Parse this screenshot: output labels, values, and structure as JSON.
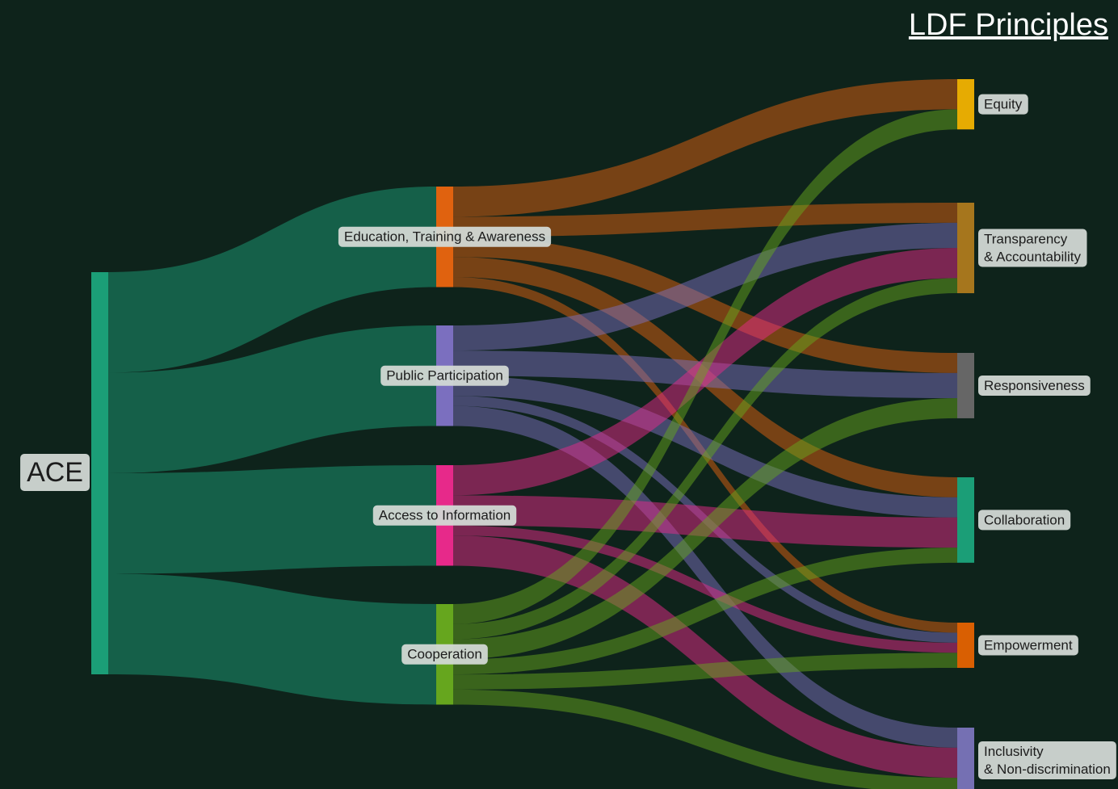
{
  "chart_data": {
    "type": "sankey",
    "title": "LDF Principles",
    "link_opacity": 0.5,
    "nodes": [
      {
        "label": [
          "ACE"
        ],
        "color": "#1b9e77"
      },
      {
        "label": [
          "Education, Training & Awareness"
        ],
        "color": "#e0620f"
      },
      {
        "label": [
          "Public Participation"
        ],
        "color": "#7b6fbf"
      },
      {
        "label": [
          "Access to Information"
        ],
        "color": "#e7298a"
      },
      {
        "label": [
          "Cooperation"
        ],
        "color": "#66a61e"
      },
      {
        "label": [
          "Equity"
        ],
        "color": "#e6ab02"
      },
      {
        "label": [
          "Transparency",
          "& Accountability"
        ],
        "color": "#a6761d"
      },
      {
        "label": [
          "Responsiveness"
        ],
        "color": "#666666"
      },
      {
        "label": [
          "Collaboration"
        ],
        "color": "#1b9e77"
      },
      {
        "label": [
          "Empowerment"
        ],
        "color": "#d95f02"
      },
      {
        "label": [
          "Inclusivity",
          "& Non-discrimination"
        ],
        "color": "#7570b3"
      }
    ],
    "links": [
      {
        "source": 0,
        "target": 1,
        "value": 10
      },
      {
        "source": 0,
        "target": 2,
        "value": 10
      },
      {
        "source": 0,
        "target": 3,
        "value": 10
      },
      {
        "source": 0,
        "target": 4,
        "value": 10
      },
      {
        "source": 1,
        "target": 5,
        "value": 3
      },
      {
        "source": 1,
        "target": 6,
        "value": 2
      },
      {
        "source": 1,
        "target": 7,
        "value": 2
      },
      {
        "source": 1,
        "target": 8,
        "value": 2
      },
      {
        "source": 1,
        "target": 9,
        "value": 1
      },
      {
        "source": 2,
        "target": 6,
        "value": 2.5
      },
      {
        "source": 2,
        "target": 7,
        "value": 2.5
      },
      {
        "source": 2,
        "target": 8,
        "value": 2
      },
      {
        "source": 2,
        "target": 9,
        "value": 1
      },
      {
        "source": 2,
        "target": 10,
        "value": 2
      },
      {
        "source": 3,
        "target": 6,
        "value": 3
      },
      {
        "source": 3,
        "target": 8,
        "value": 3
      },
      {
        "source": 3,
        "target": 9,
        "value": 1
      },
      {
        "source": 3,
        "target": 10,
        "value": 3
      },
      {
        "source": 4,
        "target": 5,
        "value": 2
      },
      {
        "source": 4,
        "target": 6,
        "value": 1.5
      },
      {
        "source": 4,
        "target": 7,
        "value": 2
      },
      {
        "source": 4,
        "target": 8,
        "value": 1.5
      },
      {
        "source": 4,
        "target": 9,
        "value": 1.5
      },
      {
        "source": 4,
        "target": 10,
        "value": 1.5
      }
    ]
  }
}
